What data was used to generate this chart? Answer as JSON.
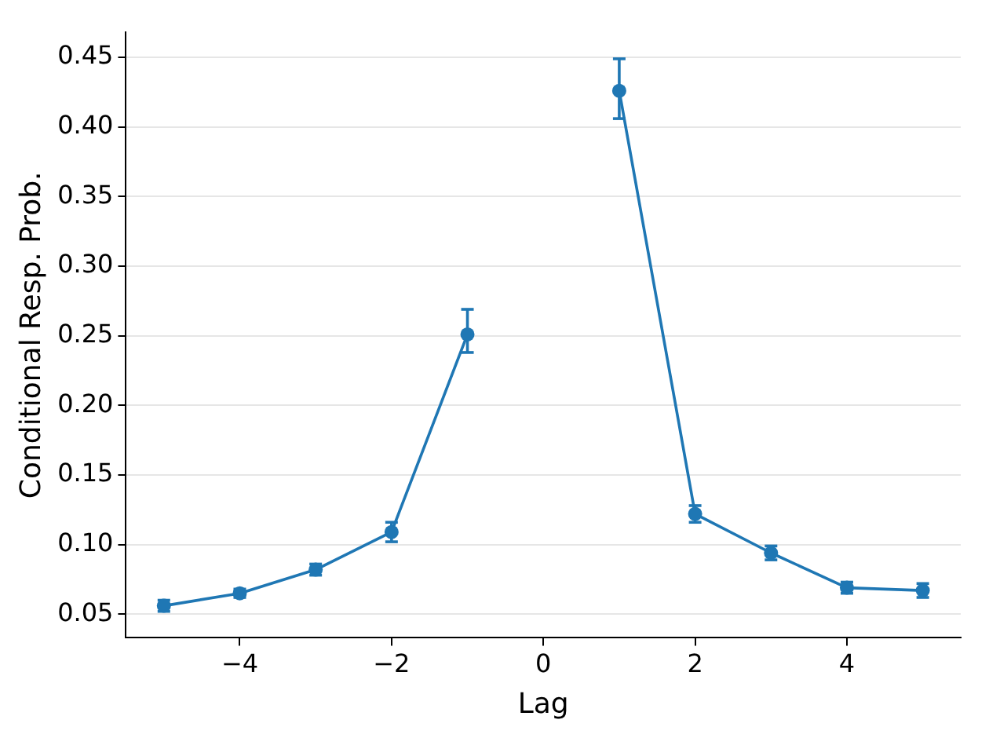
{
  "chart_data": {
    "type": "line",
    "xlabel": "Lag",
    "ylabel": "Conditional Resp. Prob.",
    "x": [
      -5,
      -4,
      -3,
      -2,
      -1,
      0,
      1,
      2,
      3,
      4,
      5
    ],
    "series": [
      {
        "color": "#1f77b4",
        "values": [
          0.056,
          0.065,
          0.082,
          0.109,
          0.251,
          null,
          0.426,
          0.122,
          0.094,
          0.069,
          0.067
        ],
        "errors": [
          0.004,
          0.003,
          0.004,
          0.007,
          [
            0.238,
            0.269
          ],
          null,
          [
            0.406,
            0.449
          ],
          0.006,
          0.005,
          0.004,
          0.005
        ]
      }
    ],
    "xlim": [
      -5.5,
      5.5
    ],
    "xticks": [
      {
        "value": -4,
        "label": "−4"
      },
      {
        "value": -2,
        "label": "−2"
      },
      0,
      2,
      4
    ],
    "ylim": [
      0.033,
      0.468
    ],
    "yticks": [
      {
        "value": 0.05,
        "label": "0.05"
      },
      {
        "value": 0.1,
        "label": "0.10"
      },
      {
        "value": 0.15,
        "label": "0.15"
      },
      {
        "value": 0.2,
        "label": "0.20"
      },
      {
        "value": 0.25,
        "label": "0.25"
      },
      {
        "value": 0.3,
        "label": "0.30"
      },
      {
        "value": 0.35,
        "label": "0.35"
      },
      {
        "value": 0.4,
        "label": "0.40"
      },
      {
        "value": 0.45,
        "label": "0.45"
      }
    ],
    "grid": "y",
    "legend": false,
    "marker": "circle",
    "line_style": "solid"
  }
}
